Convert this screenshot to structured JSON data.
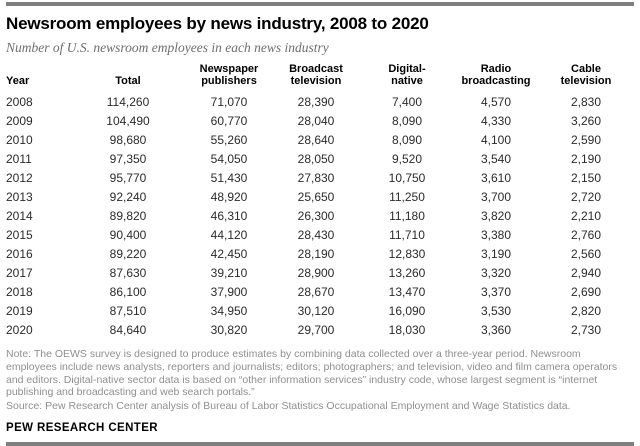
{
  "header": {
    "title": "Newsroom employees by news industry, 2008 to 2020",
    "subtitle": "Number of U.S. newsroom employees in each news industry"
  },
  "table": {
    "columns": [
      {
        "key": "year",
        "label": "Year"
      },
      {
        "key": "total",
        "label": "Total"
      },
      {
        "key": "newspaper",
        "label": "Newspaper\npublishers"
      },
      {
        "key": "broadcast",
        "label": "Broadcast\ntelevision"
      },
      {
        "key": "digital",
        "label": "Digital-\nnative"
      },
      {
        "key": "radio",
        "label": "Radio\nbroadcasting"
      },
      {
        "key": "cable",
        "label": "Cable\ntelevision"
      }
    ],
    "rows": [
      {
        "year": "2008",
        "values": [
          "114,260",
          "71,070",
          "28,390",
          "7,400",
          "4,570",
          "2,830"
        ]
      },
      {
        "year": "2009",
        "values": [
          "104,490",
          "60,770",
          "28,040",
          "8,090",
          "4,330",
          "3,260"
        ]
      },
      {
        "year": "2010",
        "values": [
          "98,680",
          "55,260",
          "28,640",
          "8,090",
          "4,100",
          "2,590"
        ]
      },
      {
        "year": "2011",
        "values": [
          "97,350",
          "54,050",
          "28,050",
          "9,520",
          "3,540",
          "2,190"
        ]
      },
      {
        "year": "2012",
        "values": [
          "95,770",
          "51,430",
          "27,830",
          "10,750",
          "3,610",
          "2,150"
        ]
      },
      {
        "year": "2013",
        "values": [
          "92,240",
          "48,920",
          "25,650",
          "11,250",
          "3,700",
          "2,720"
        ]
      },
      {
        "year": "2014",
        "values": [
          "89,820",
          "46,310",
          "26,300",
          "11,180",
          "3,820",
          "2,210"
        ]
      },
      {
        "year": "2015",
        "values": [
          "90,400",
          "44,120",
          "28,430",
          "11,710",
          "3,380",
          "2,760"
        ]
      },
      {
        "year": "2016",
        "values": [
          "89,220",
          "42,450",
          "28,190",
          "12,830",
          "3,190",
          "2,560"
        ]
      },
      {
        "year": "2017",
        "values": [
          "87,630",
          "39,210",
          "28,900",
          "13,260",
          "3,320",
          "2,940"
        ]
      },
      {
        "year": "2018",
        "values": [
          "86,100",
          "37,900",
          "28,670",
          "13,470",
          "3,370",
          "2,690"
        ]
      },
      {
        "year": "2019",
        "values": [
          "87,510",
          "34,950",
          "30,120",
          "16,090",
          "3,530",
          "2,820"
        ]
      },
      {
        "year": "2020",
        "values": [
          "84,640",
          "30,820",
          "29,700",
          "18,030",
          "3,360",
          "2,730"
        ]
      }
    ]
  },
  "notes": {
    "note": "Note: The OEWS survey is designed to produce estimates by combining data collected over a three-year period. Newsroom employees include news analysts, reporters and journalists; editors; photographers; and television, video and film camera operators and editors. Digital-native sector data is based on “other information services” industry code, whose largest segment is “internet publishing and broadcasting and web search portals.”",
    "source": "Source: Pew Research Center analysis of Bureau of Labor Statistics Occupational Employment and Wage Statistics data."
  },
  "footer": {
    "brand": "PEW RESEARCH CENTER"
  },
  "colors": {
    "divider_bar": "#7f7f7f",
    "title_text": "#000000",
    "subtitle_text": "#6e6e6e",
    "cell_text": "#2b2b2b",
    "note_text": "#8f8f8f"
  },
  "chart_data": {
    "type": "table",
    "title": "Newsroom employees by news industry, 2008 to 2020",
    "subtitle": "Number of U.S. newsroom employees in each news industry",
    "columns": [
      "Year",
      "Total",
      "Newspaper publishers",
      "Broadcast television",
      "Digital-native",
      "Radio broadcasting",
      "Cable television"
    ],
    "rows": [
      [
        2008,
        114260,
        71070,
        28390,
        7400,
        4570,
        2830
      ],
      [
        2009,
        104490,
        60770,
        28040,
        8090,
        4330,
        3260
      ],
      [
        2010,
        98680,
        55260,
        28640,
        8090,
        4100,
        2590
      ],
      [
        2011,
        97350,
        54050,
        28050,
        9520,
        3540,
        2190
      ],
      [
        2012,
        95770,
        51430,
        27830,
        10750,
        3610,
        2150
      ],
      [
        2013,
        92240,
        48920,
        25650,
        11250,
        3700,
        2720
      ],
      [
        2014,
        89820,
        46310,
        26300,
        11180,
        3820,
        2210
      ],
      [
        2015,
        90400,
        44120,
        28430,
        11710,
        3380,
        2760
      ],
      [
        2016,
        89220,
        42450,
        28190,
        12830,
        3190,
        2560
      ],
      [
        2017,
        87630,
        39210,
        28900,
        13260,
        3320,
        2940
      ],
      [
        2018,
        86100,
        37900,
        28670,
        13470,
        3370,
        2690
      ],
      [
        2019,
        87510,
        34950,
        30120,
        16090,
        3530,
        2820
      ],
      [
        2020,
        84640,
        30820,
        29700,
        18030,
        3360,
        2730
      ]
    ]
  }
}
